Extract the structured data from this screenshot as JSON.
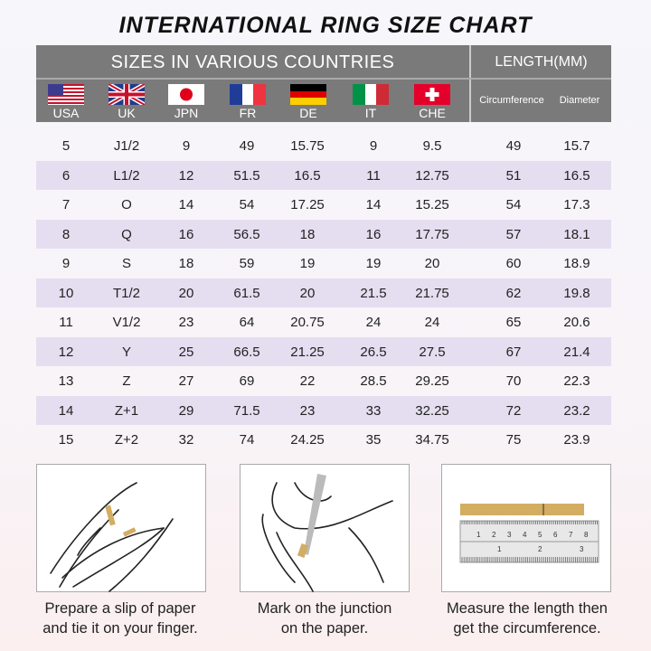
{
  "title": "INTERNATIONAL RING SIZE CHART",
  "header": {
    "sizes": "SIZES IN VARIOUS COUNTRIES",
    "length": "LENGTH(MM)",
    "circumference": "Circumference",
    "diameter": "Diameter",
    "countries": [
      {
        "label": "USA",
        "flag": "usa-flag-icon"
      },
      {
        "label": "UK",
        "flag": "uk-flag-icon"
      },
      {
        "label": "JPN",
        "flag": "japan-flag-icon"
      },
      {
        "label": "FR",
        "flag": "france-flag-icon"
      },
      {
        "label": "DE",
        "flag": "germany-flag-icon"
      },
      {
        "label": "IT",
        "flag": "italy-flag-icon"
      },
      {
        "label": "CHE",
        "flag": "switzerland-flag-icon"
      }
    ]
  },
  "rows": [
    [
      "5",
      "J1/2",
      "9",
      "49",
      "15.75",
      "9",
      "9.5",
      "49",
      "15.7"
    ],
    [
      "6",
      "L1/2",
      "12",
      "51.5",
      "16.5",
      "11",
      "12.75",
      "51",
      "16.5"
    ],
    [
      "7",
      "O",
      "14",
      "54",
      "17.25",
      "14",
      "15.25",
      "54",
      "17.3"
    ],
    [
      "8",
      "Q",
      "16",
      "56.5",
      "18",
      "16",
      "17.75",
      "57",
      "18.1"
    ],
    [
      "9",
      "S",
      "18",
      "59",
      "19",
      "19",
      "20",
      "60",
      "18.9"
    ],
    [
      "10",
      "T1/2",
      "20",
      "61.5",
      "20",
      "21.5",
      "21.75",
      "62",
      "19.8"
    ],
    [
      "11",
      "V1/2",
      "23",
      "64",
      "20.75",
      "24",
      "24",
      "65",
      "20.6"
    ],
    [
      "12",
      "Y",
      "25",
      "66.5",
      "21.25",
      "26.5",
      "27.5",
      "67",
      "21.4"
    ],
    [
      "13",
      "Z",
      "27",
      "69",
      "22",
      "28.5",
      "29.25",
      "70",
      "22.3"
    ],
    [
      "14",
      "Z+1",
      "29",
      "71.5",
      "23",
      "33",
      "32.25",
      "72",
      "23.2"
    ],
    [
      "15",
      "Z+2",
      "32",
      "74",
      "24.25",
      "35",
      "34.75",
      "75",
      "23.9"
    ]
  ],
  "steps": [
    {
      "line1": "Prepare a slip of paper",
      "line2": "and tie it on your finger."
    },
    {
      "line1": "Mark on the junction",
      "line2": "on the paper."
    },
    {
      "line1": "Measure the length then",
      "line2": "get the circumference."
    }
  ],
  "ruler": {
    "top_ticks": [
      "1",
      "2",
      "3",
      "4",
      "5",
      "6",
      "7",
      "8"
    ],
    "bottom_ticks": [
      "1",
      "2",
      "3"
    ]
  },
  "colors": {
    "header_bg": "#7a7a7a",
    "row_alt": "#e4def0",
    "paper": "#d2ad62"
  }
}
